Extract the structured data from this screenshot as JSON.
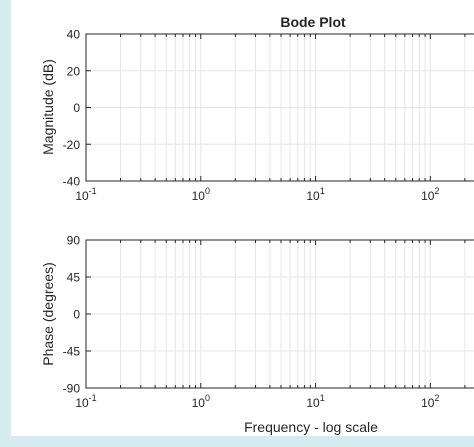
{
  "chart_data": [
    {
      "type": "line",
      "title": "Bode Plot",
      "xlabel": "",
      "ylabel": "Magnitude (dB)",
      "xscale": "log",
      "xlim": [
        0.1,
        250
      ],
      "ylim": [
        -40,
        40
      ],
      "yticks": [
        40,
        20,
        0,
        -20,
        -40
      ],
      "yticklabels": [
        "40",
        "20",
        "0",
        "-20",
        "-40"
      ],
      "xticks": [
        {
          "value": 0.1,
          "base": "10",
          "exp": "-1"
        },
        {
          "value": 1,
          "base": "10",
          "exp": "0"
        },
        {
          "value": 10,
          "base": "10",
          "exp": "1"
        },
        {
          "value": 100,
          "base": "10",
          "exp": "2"
        }
      ],
      "grid": true,
      "series": []
    },
    {
      "type": "line",
      "title": "",
      "xlabel": "Frequency - log scale",
      "ylabel": "Phase (degrees)",
      "xscale": "log",
      "xlim": [
        0.1,
        250
      ],
      "ylim": [
        -90,
        90
      ],
      "yticks": [
        90,
        45,
        0,
        -45,
        -90
      ],
      "yticklabels": [
        "90",
        "45",
        "0",
        "-45",
        "-90"
      ],
      "xticks": [
        {
          "value": 0.1,
          "base": "10",
          "exp": "-1"
        },
        {
          "value": 1,
          "base": "10",
          "exp": "0"
        },
        {
          "value": 10,
          "base": "10",
          "exp": "1"
        },
        {
          "value": 100,
          "base": "10",
          "exp": "2"
        }
      ],
      "grid": true,
      "series": []
    }
  ],
  "colors": {
    "background": "#d6ebf0",
    "figure": "#ffffff",
    "axis": "#262626",
    "grid": "#e6e6e6"
  }
}
